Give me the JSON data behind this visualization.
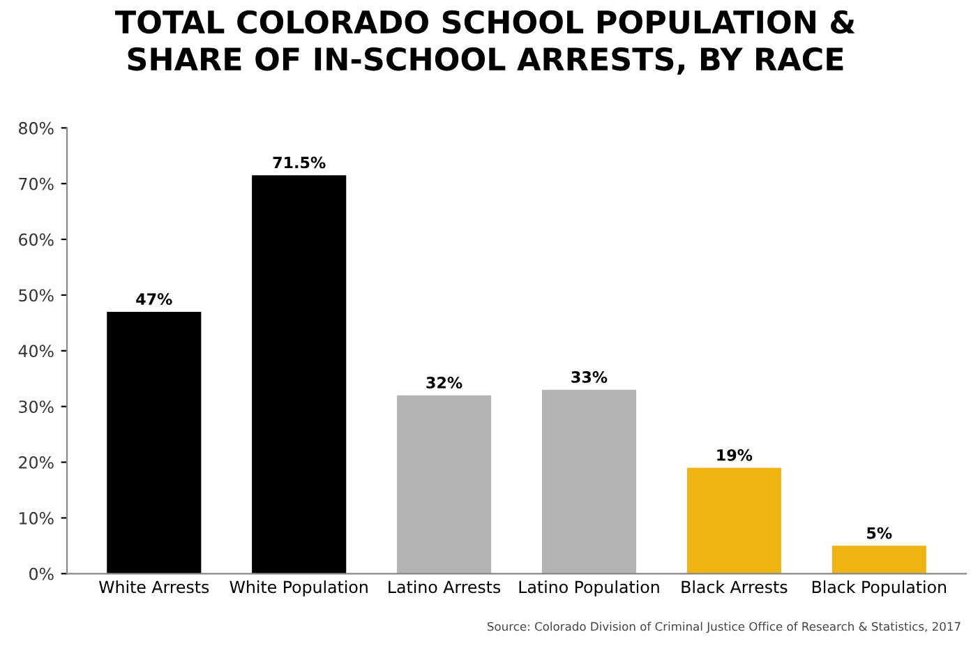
{
  "chart_data": {
    "type": "bar",
    "title": "TOTAL COLORADO SCHOOL POPULATION &\nSHARE OF IN-SCHOOL ARRESTS, BY RACE",
    "categories": [
      "White Arrests",
      "White Population",
      "Latino Arrests",
      "Latino Population",
      "Black Arrests",
      "Black Population"
    ],
    "values": [
      47,
      71.5,
      32,
      33,
      19,
      5
    ],
    "value_labels": [
      "47%",
      "71.5%",
      "32%",
      "33%",
      "19%",
      "5%"
    ],
    "colors": [
      "#000000",
      "#000000",
      "#b3b3b3",
      "#b3b3b3",
      "#f0b411",
      "#f0b411"
    ],
    "ylim": [
      0,
      80
    ],
    "yticks": [
      {
        "value": 0,
        "label": "0%"
      },
      {
        "value": 10,
        "label": "10%"
      },
      {
        "value": 20,
        "label": "20%"
      },
      {
        "value": 30,
        "label": "30%"
      },
      {
        "value": 40,
        "label": "40%"
      },
      {
        "value": 50,
        "label": "50%"
      },
      {
        "value": 60,
        "label": "60%"
      },
      {
        "value": 70,
        "label": "70%"
      },
      {
        "value": 80,
        "label": "80%"
      }
    ],
    "grid": false,
    "annotations": [
      "Source: Colorado Division of Criminal Justice Office of Research & Statistics, 2017"
    ]
  }
}
